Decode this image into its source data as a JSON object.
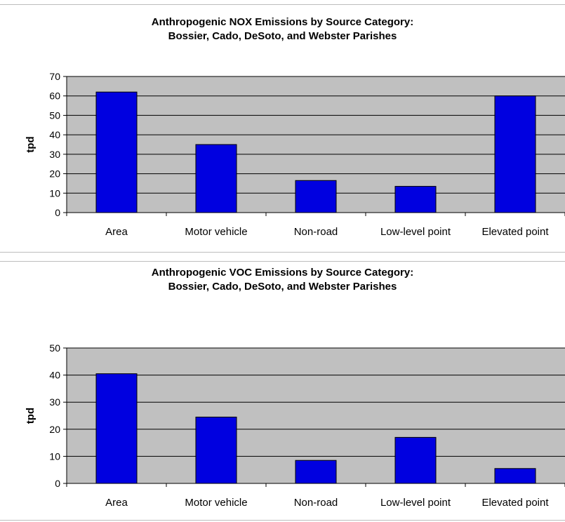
{
  "chart_data": [
    {
      "type": "bar",
      "title": [
        "Anthropogenic NOX Emissions by Source Category:",
        "Bossier, Cado, DeSoto, and Webster Parishes"
      ],
      "ylabel": "tpd",
      "xlabel": "",
      "categories": [
        "Area",
        "Motor vehicle",
        "Non-road",
        "Low-level point",
        "Elevated point"
      ],
      "values": [
        62,
        35,
        16.5,
        13.5,
        60
      ],
      "ylim": [
        0,
        70
      ],
      "yticks": [
        "0",
        "10",
        "20",
        "30",
        "40",
        "50",
        "60",
        "70"
      ],
      "grid": true,
      "legend": "none",
      "colors": {
        "bar": "#0000e0",
        "plot_bg": "#c0c0c0",
        "grid": "#000000"
      }
    },
    {
      "type": "bar",
      "title": [
        "Anthropogenic VOC Emissions by Source Category:",
        "Bossier, Cado, DeSoto, and Webster Parishes"
      ],
      "ylabel": "tpd",
      "xlabel": "",
      "categories": [
        "Area",
        "Motor vehicle",
        "Non-road",
        "Low-level point",
        "Elevated point"
      ],
      "values": [
        40.5,
        24.5,
        8.5,
        17,
        5.5
      ],
      "ylim": [
        0,
        50
      ],
      "yticks": [
        "0",
        "10",
        "20",
        "30",
        "40",
        "50"
      ],
      "grid": true,
      "legend": "none",
      "colors": {
        "bar": "#0000e0",
        "plot_bg": "#c0c0c0",
        "grid": "#000000"
      }
    }
  ]
}
